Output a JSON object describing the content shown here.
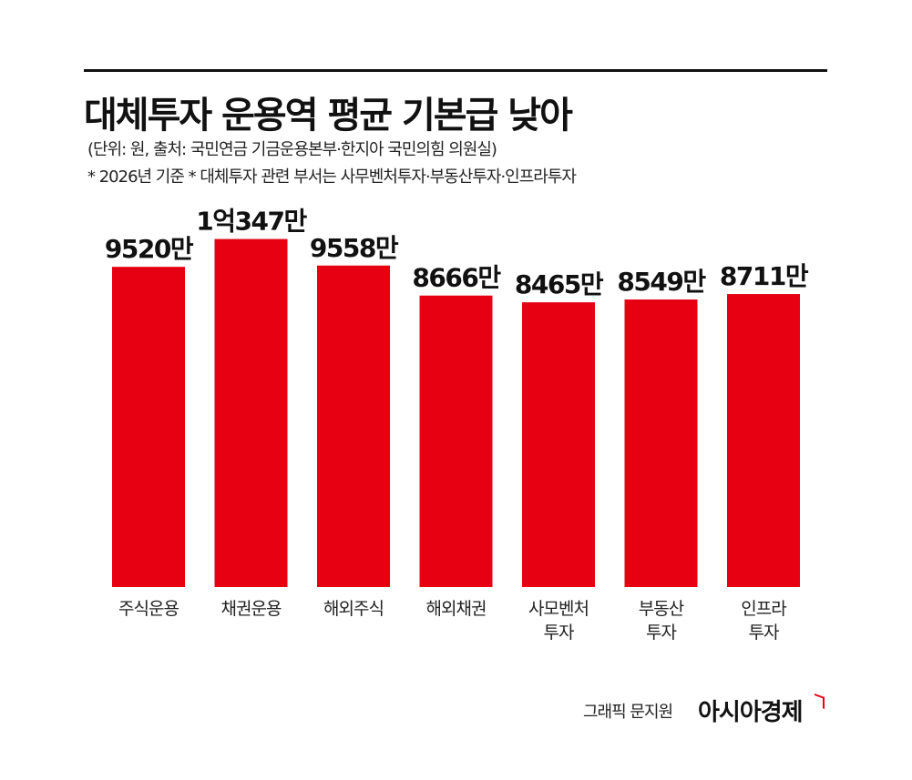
{
  "header": {
    "title": "대체투자 운용역 평균 기본급 낮아",
    "note_source": "(단위: 원, 출처: 국민연금 기금운용본부·한지아 국민의힘 의원실)",
    "note_basis": "* 2026년 기준  * 대체투자 관련 부서는 사무벤처투자·부동산투자·인프라투자"
  },
  "footer": {
    "credit": "그래픽 문지원",
    "brand": "아시아경제"
  },
  "colors": {
    "bar": "#e60012",
    "text": "#111111"
  },
  "chart_data": {
    "type": "bar",
    "categories": [
      [
        "주식운용"
      ],
      [
        "채권운용"
      ],
      [
        "해외주식"
      ],
      [
        "해외채권"
      ],
      [
        "사모벤처",
        "투자"
      ],
      [
        "부동산",
        "투자"
      ],
      [
        "인프라",
        "투자"
      ]
    ],
    "values": [
      95200000,
      103470000,
      95580000,
      86660000,
      84650000,
      85490000,
      87110000
    ],
    "data_labels": [
      "9520만",
      "1억347만",
      "9558만",
      "8666만",
      "8465만",
      "8549만",
      "8711만"
    ],
    "ylim": [
      0,
      115000000
    ],
    "grid": false,
    "legend": "none"
  }
}
